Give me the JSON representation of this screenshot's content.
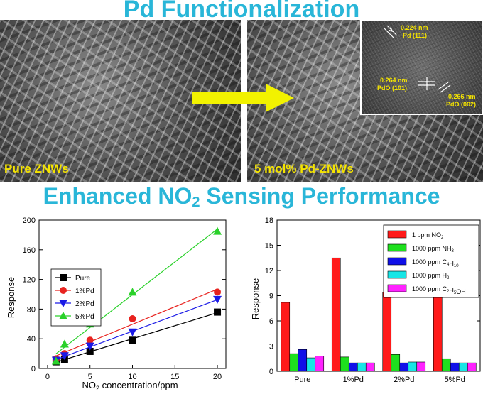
{
  "header": {
    "title": "Pd Functionalization"
  },
  "images": {
    "left_caption": "Pure ZNWs",
    "right_caption": "5 mol%  Pd-ZNWs",
    "tem_labels": [
      "0.224 nm",
      "Pd (111)",
      "0.264 nm",
      "PdO (101)",
      "0.266 nm",
      "PdO (002)"
    ]
  },
  "section": {
    "title_pre": "Enhanced NO",
    "title_sub": "2",
    "title_post": " Sensing Performance"
  },
  "chart_data": [
    {
      "type": "line",
      "x": [
        1,
        2,
        5,
        10,
        20
      ],
      "series": [
        {
          "name": "Pure",
          "color": "#000000",
          "marker": "square",
          "values": [
            9,
            12,
            23,
            38,
            76
          ]
        },
        {
          "name": "1%Pd",
          "color": "#e8231f",
          "marker": "circle",
          "values": [
            13,
            20,
            38,
            67,
            103
          ]
        },
        {
          "name": "2%Pd",
          "color": "#1a1ae6",
          "marker": "triangle-down",
          "values": [
            11,
            17,
            30,
            49,
            93
          ]
        },
        {
          "name": "5%Pd",
          "color": "#2ad12a",
          "marker": "triangle-up",
          "values": [
            10,
            33,
            60,
            103,
            185
          ]
        }
      ],
      "xlabel_pre": "NO",
      "xlabel_sub": "2",
      "xlabel_post": "  concentration/ppm",
      "ylabel": "Response",
      "xlim": [
        -1,
        21
      ],
      "ylim": [
        0,
        200
      ],
      "xticks": [
        "0",
        "5",
        "10",
        "15",
        "20"
      ],
      "yticks": [
        "0",
        "40",
        "80",
        "120",
        "160",
        "200"
      ],
      "legend": "middle-left"
    },
    {
      "type": "bar",
      "categories": [
        "Pure",
        "1%Pd",
        "2%Pd",
        "5%Pd"
      ],
      "series": [
        {
          "name": "1 ppm NO2",
          "color": "#ff1a1a",
          "values": [
            8.2,
            13.5,
            9.4,
            9.4
          ]
        },
        {
          "name": "1000 ppm NH3",
          "color": "#1ee01e",
          "values": [
            2.1,
            1.7,
            2.0,
            1.5
          ]
        },
        {
          "name": "1000 ppm C4H10",
          "color": "#1010e8",
          "values": [
            2.6,
            1.0,
            1.0,
            1.0
          ]
        },
        {
          "name": "1000 ppm H2",
          "color": "#18e6e6",
          "values": [
            1.6,
            1.0,
            1.1,
            1.0
          ]
        },
        {
          "name": "1000 ppm C2H5OH",
          "color": "#ff22ff",
          "values": [
            1.8,
            1.0,
            1.1,
            1.0
          ]
        }
      ],
      "ylabel": "Response",
      "ylim": [
        0,
        18
      ],
      "yticks": [
        "0",
        "3",
        "6",
        "9",
        "12",
        "15",
        "18"
      ],
      "legend": "top-right"
    }
  ]
}
